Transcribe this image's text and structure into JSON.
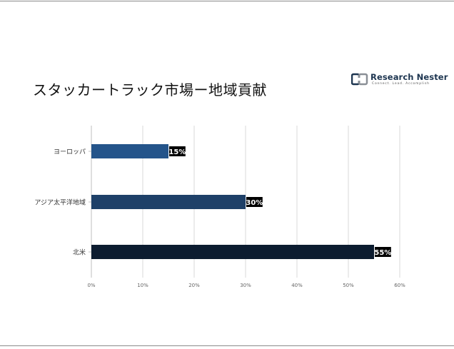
{
  "title": "スタッカートラック市場ー地域貢献",
  "logo": {
    "name": "Research Nester",
    "tagline": "Connect. Lead. Accomplish"
  },
  "colors": {
    "europe": "#24548a",
    "asia_pacific": "#1e4068",
    "north_america": "#0c1c30",
    "label_bg": "#000000",
    "grid": "#d9d9d9"
  },
  "chart_data": {
    "type": "bar",
    "orientation": "horizontal",
    "categories": [
      "ヨーロッパ",
      "アジア太平洋地域",
      "北米"
    ],
    "values": [
      15,
      30,
      55
    ],
    "data_labels": [
      "15%",
      "30%",
      "55%"
    ],
    "xlim": [
      0,
      60
    ],
    "xticks": [
      0,
      10,
      20,
      30,
      40,
      50,
      60
    ],
    "xtick_labels": [
      "0%",
      "10%",
      "20%",
      "30%",
      "40%",
      "50%",
      "60%"
    ],
    "grid": true,
    "legend": "none"
  }
}
